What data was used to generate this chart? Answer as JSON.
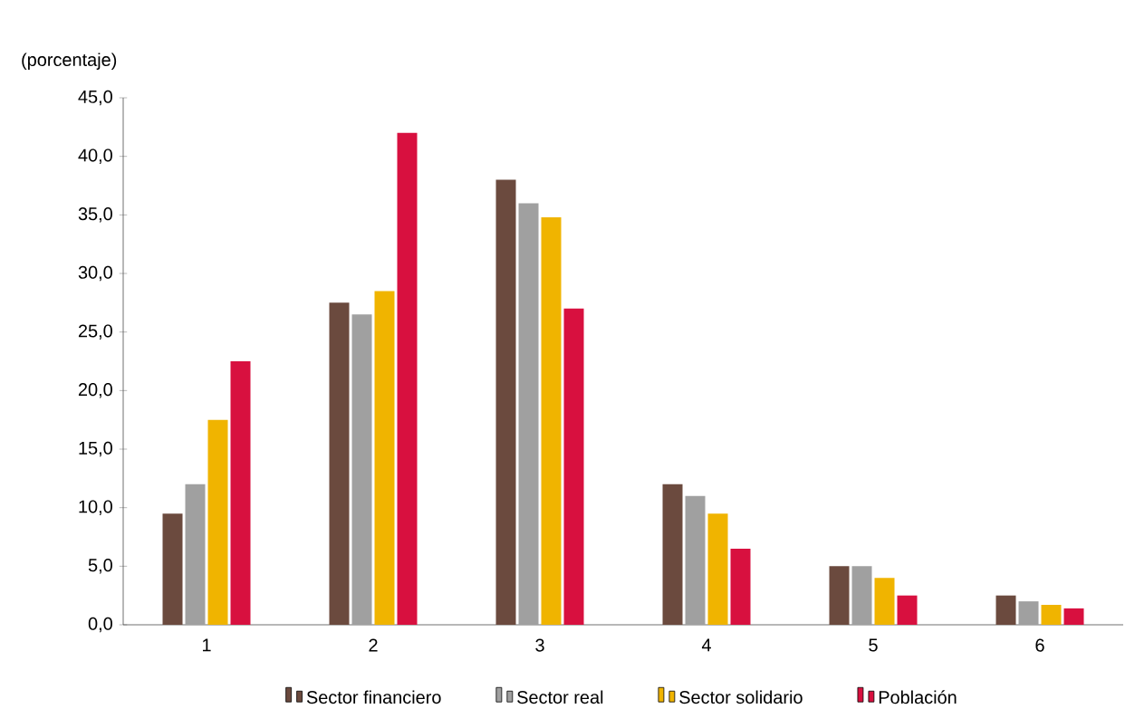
{
  "chart_data": {
    "type": "bar",
    "ylabel": "(porcentaje)",
    "categories": [
      "1",
      "2",
      "3",
      "4",
      "5",
      "6"
    ],
    "series": [
      {
        "name": "Sector financiero",
        "color": "#6b4a3e",
        "values": [
          9.5,
          27.5,
          38.0,
          12.0,
          5.0,
          2.5
        ]
      },
      {
        "name": "Sector real",
        "color": "#a0a0a0",
        "values": [
          12.0,
          26.5,
          36.0,
          11.0,
          5.0,
          2.0
        ]
      },
      {
        "name": "Sector solidario",
        "color": "#f0b400",
        "values": [
          17.5,
          28.5,
          34.8,
          9.5,
          4.0,
          1.7
        ]
      },
      {
        "name": "Población",
        "color": "#d8103f",
        "values": [
          22.5,
          42.0,
          27.0,
          6.5,
          2.5,
          1.4
        ]
      }
    ],
    "ylim": [
      0,
      45
    ],
    "yticks": [
      {
        "value": 0,
        "label": "0,0"
      },
      {
        "value": 5,
        "label": "5,0"
      },
      {
        "value": 10,
        "label": "10,0"
      },
      {
        "value": 15,
        "label": "15,0"
      },
      {
        "value": 20,
        "label": "20,0"
      },
      {
        "value": 25,
        "label": "25,0"
      },
      {
        "value": 30,
        "label": "30,0"
      },
      {
        "value": 35,
        "label": "35,0"
      },
      {
        "value": 40,
        "label": "40,0"
      },
      {
        "value": 45,
        "label": "45,0"
      }
    ],
    "legend": "bottom"
  }
}
